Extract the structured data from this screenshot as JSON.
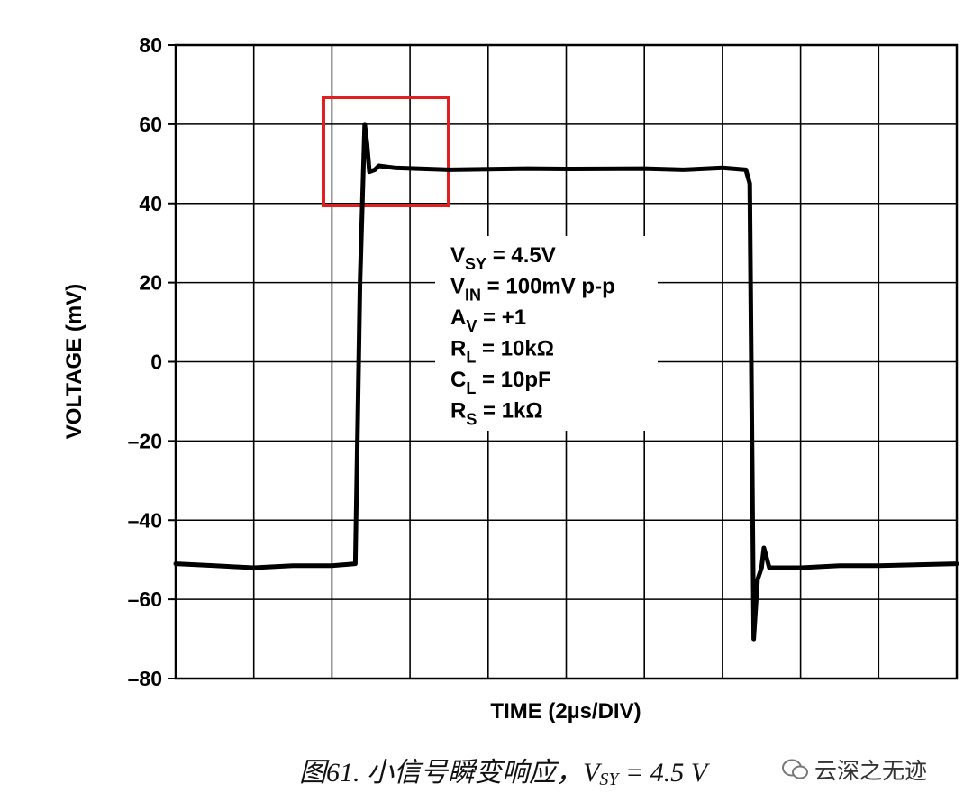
{
  "chart_data": {
    "type": "line",
    "y_label": "VOLTAGE (mV)",
    "x_label": "TIME (2µs/DIV)",
    "xlim": [
      0,
      10
    ],
    "xticks": [
      0,
      1,
      2,
      3,
      4,
      5,
      6,
      7,
      8,
      9,
      10
    ],
    "xtick_labels": false,
    "ylim": [
      -80,
      80
    ],
    "yticks": [
      {
        "value": -80,
        "label": "–80"
      },
      {
        "value": -60,
        "label": "–60"
      },
      {
        "value": -40,
        "label": "–40"
      },
      {
        "value": -20,
        "label": "–20"
      },
      0,
      20,
      40,
      60,
      80
    ],
    "grid": true,
    "color": "#000000",
    "x": [
      0,
      0.5,
      1,
      1.5,
      2,
      2.3,
      2.36,
      2.42,
      2.45,
      2.48,
      2.55,
      2.6,
      2.8,
      3.5,
      4.5,
      5,
      6,
      6.5,
      7,
      7.3,
      7.35,
      7.4,
      7.45,
      7.5,
      7.53,
      7.6,
      8,
      8.5,
      9,
      10
    ],
    "values": [
      -51,
      -51.5,
      -52,
      -51.5,
      -51.5,
      -51,
      20,
      60,
      55,
      48,
      48.5,
      49.5,
      49,
      48.5,
      48.8,
      48.7,
      48.8,
      48.5,
      49,
      48.5,
      45,
      -70,
      -55,
      -52,
      -47,
      -52,
      -52,
      -51.5,
      -51.5,
      -51
    ],
    "annotation": [
      {
        "main": "V",
        "sub": "SY",
        "rest": " = 4.5V"
      },
      {
        "main": "V",
        "sub": "IN",
        "rest": " = 100mV p-p"
      },
      {
        "main": "A",
        "sub": "V",
        "rest": " = +1"
      },
      {
        "main": "R",
        "sub": "L",
        "rest": " = 10kΩ"
      },
      {
        "main": "C",
        "sub": "L",
        "rest": " = 10pF"
      },
      {
        "main": "R",
        "sub": "S",
        "rest": " = 1kΩ"
      }
    ]
  },
  "caption": {
    "main": "图61. 小信号瞬变响应，V",
    "sub": "SY",
    "rest": " = 4.5 V"
  },
  "watermark": "云深之无迹"
}
